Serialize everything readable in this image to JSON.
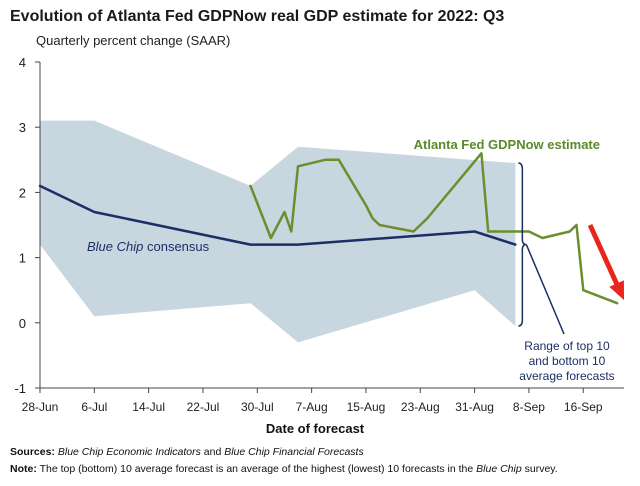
{
  "header": {
    "title": "Evolution of Atlanta Fed GDPNow real GDP estimate for 2022: Q3",
    "subtitle": "Quarterly percent change (SAAR)"
  },
  "footer": {
    "sources_label": "Sources:",
    "sources_text_1": "Blue Chip Economic Indicators",
    "sources_text_2": " and ",
    "sources_text_3": "Blue Chip Financial Forecasts",
    "note_label": "Note:",
    "note_text_1": " The top (bottom) 10 average forecast is an average of the highest (lowest) 10 forecasts in the ",
    "note_text_2": "Blue Chip",
    "note_text_3": " survey."
  },
  "chart_data": {
    "type": "line",
    "title": "Evolution of Atlanta Fed GDPNow real GDP estimate for 2022: Q3",
    "subtitle": "Quarterly percent change (SAAR)",
    "xlabel": "Date of forecast",
    "ylabel": "",
    "ylim": [
      -1,
      4
    ],
    "yticks": [
      "-1",
      "0",
      "1",
      "2",
      "3",
      "4"
    ],
    "xlim": [
      "2022-06-28",
      "2022-09-22"
    ],
    "xticks": [
      {
        "date": "2022-06-28",
        "label": "28-Jun"
      },
      {
        "date": "2022-07-06",
        "label": "6-Jul"
      },
      {
        "date": "2022-07-14",
        "label": "14-Jul"
      },
      {
        "date": "2022-07-22",
        "label": "22-Jul"
      },
      {
        "date": "2022-07-30",
        "label": "30-Jul"
      },
      {
        "date": "2022-08-07",
        "label": "7-Aug"
      },
      {
        "date": "2022-08-15",
        "label": "15-Aug"
      },
      {
        "date": "2022-08-23",
        "label": "23-Aug"
      },
      {
        "date": "2022-08-31",
        "label": "31-Aug"
      },
      {
        "date": "2022-09-08",
        "label": "8-Sep"
      },
      {
        "date": "2022-09-16",
        "label": "16-Sep"
      }
    ],
    "grid": false,
    "range_band": {
      "name": "Range of top 10 and bottom 10 average forecasts",
      "color": "#c8d6df",
      "top": [
        {
          "x": "2022-06-28",
          "y": 3.1
        },
        {
          "x": "2022-07-06",
          "y": 3.1
        },
        {
          "x": "2022-07-29",
          "y": 2.1
        },
        {
          "x": "2022-08-05",
          "y": 2.7
        },
        {
          "x": "2022-09-06",
          "y": 2.45
        }
      ],
      "bottom": [
        {
          "x": "2022-06-28",
          "y": 1.2
        },
        {
          "x": "2022-07-06",
          "y": 0.1
        },
        {
          "x": "2022-07-29",
          "y": 0.3
        },
        {
          "x": "2022-08-05",
          "y": -0.3
        },
        {
          "x": "2022-08-31",
          "y": 0.5
        },
        {
          "x": "2022-09-06",
          "y": -0.05
        }
      ]
    },
    "series": [
      {
        "name": "Blue Chip consensus",
        "color": "#1b2f66",
        "points": [
          {
            "x": "2022-06-28",
            "y": 2.1
          },
          {
            "x": "2022-07-06",
            "y": 1.7
          },
          {
            "x": "2022-07-29",
            "y": 1.2
          },
          {
            "x": "2022-08-05",
            "y": 1.2
          },
          {
            "x": "2022-08-31",
            "y": 1.4
          },
          {
            "x": "2022-09-06",
            "y": 1.2
          }
        ]
      },
      {
        "name": "Atlanta Fed GDPNow estimate",
        "color": "#6b8e2e",
        "points": [
          {
            "x": "2022-07-29",
            "y": 2.1
          },
          {
            "x": "2022-08-01",
            "y": 1.3
          },
          {
            "x": "2022-08-03",
            "y": 1.7
          },
          {
            "x": "2022-08-04",
            "y": 1.4
          },
          {
            "x": "2022-08-05",
            "y": 2.4
          },
          {
            "x": "2022-08-09",
            "y": 2.5
          },
          {
            "x": "2022-08-11",
            "y": 2.5
          },
          {
            "x": "2022-08-15",
            "y": 1.8
          },
          {
            "x": "2022-08-16",
            "y": 1.6
          },
          {
            "x": "2022-08-17",
            "y": 1.5
          },
          {
            "x": "2022-08-22",
            "y": 1.4
          },
          {
            "x": "2022-08-24",
            "y": 1.6
          },
          {
            "x": "2022-09-01",
            "y": 2.6
          },
          {
            "x": "2022-09-02",
            "y": 1.4
          },
          {
            "x": "2022-09-08",
            "y": 1.4
          },
          {
            "x": "2022-09-10",
            "y": 1.3
          },
          {
            "x": "2022-09-14",
            "y": 1.4
          },
          {
            "x": "2022-09-15",
            "y": 1.5
          },
          {
            "x": "2022-09-16",
            "y": 0.5
          },
          {
            "x": "2022-09-21",
            "y": 0.3
          }
        ]
      }
    ],
    "annotations": [
      {
        "text": "Atlanta Fed GDPNow estimate",
        "color": "#5a8a2a"
      },
      {
        "text": "Blue Chip consensus",
        "italic_part": "Blue Chip",
        "color": "#1b2f66"
      },
      {
        "lines": [
          "Range of top 10",
          "and bottom 10",
          "average forecasts"
        ],
        "color": "#1b2f66"
      }
    ],
    "trend_arrow": {
      "color": "#e8261c",
      "from": {
        "x": "2022-09-17",
        "y": 1.5
      },
      "to": {
        "x": "2022-09-22",
        "y": 0.35
      }
    }
  }
}
